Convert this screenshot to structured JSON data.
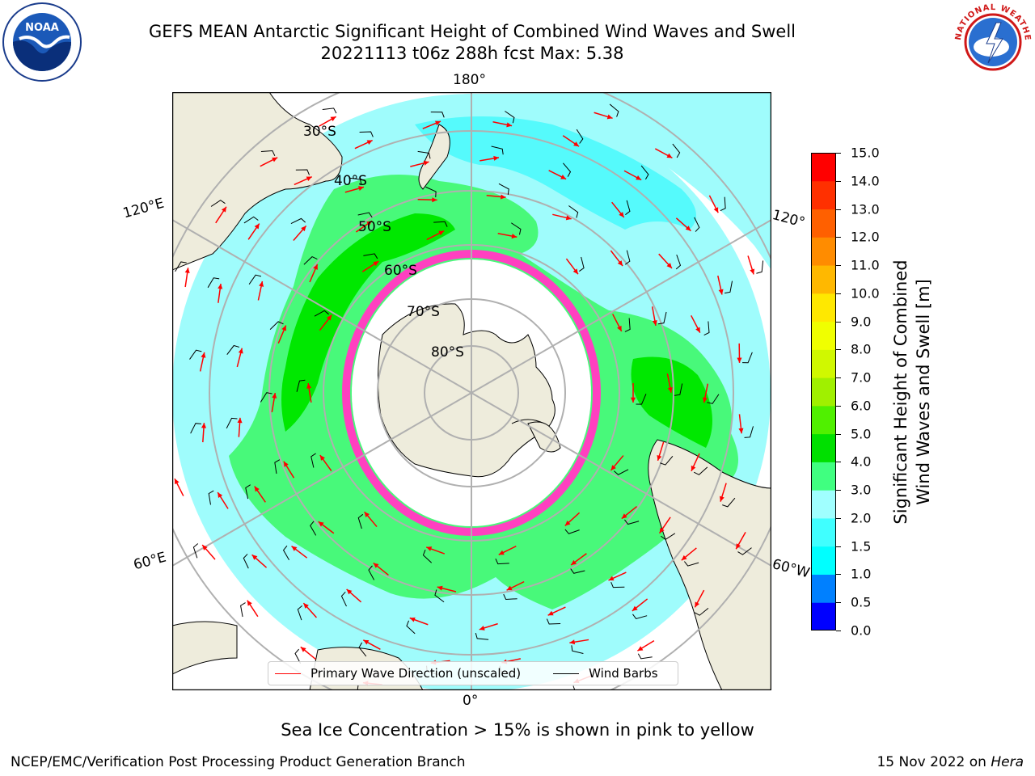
{
  "title_line1": "GEFS MEAN Antarctic Significant Height of Combined Wind Waves and Swell",
  "title_line2": "20221113 t06z 288h fcst   Max: 5.38",
  "longitude_labels": {
    "top": "180°",
    "bottom": "0°",
    "upper_left": "120°E",
    "upper_right": "120°",
    "lower_left": "60°E",
    "lower_right": "60°W"
  },
  "latitude_labels": [
    "30°S",
    "40°S",
    "50°S",
    "60°S",
    "70°S",
    "80°S"
  ],
  "colorbar": {
    "label_line1": "Significant Height of Combined",
    "label_line2": "Wind Waves and Swell [m]",
    "ticks": [
      "15.0",
      "14.0",
      "13.0",
      "12.0",
      "11.0",
      "10.0",
      "9.0",
      "8.0",
      "7.0",
      "6.0",
      "5.0",
      "4.0",
      "3.0",
      "2.0",
      "1.5",
      "1.0",
      "0.5",
      "0.0"
    ],
    "colors_bottom_to_top": [
      "#0000ff",
      "#0080ff",
      "#00ffff",
      "#40ffff",
      "#a0ffff",
      "#40ff80",
      "#00e000",
      "#50f000",
      "#a0f000",
      "#d0f800",
      "#f0ff00",
      "#ffe800",
      "#ffb800",
      "#ff8c00",
      "#ff6000",
      "#ff3000",
      "#ff0000"
    ]
  },
  "legend": {
    "wave_direction": "Primary Wave Direction (unscaled)",
    "wave_color": "#ff0000",
    "wind_barbs": "Wind Barbs",
    "barb_color": "#000000"
  },
  "map_colors": {
    "land": "#eeecdc",
    "ocean_2_3m": "#9ffcfc",
    "ocean_3_4m": "#48f97a",
    "ocean_4_5m": "#00e800",
    "ocean_1_5_2m": "#48f9fc",
    "sea_ice": "#ff40c0",
    "grid": "#b0b0b0"
  },
  "caption": "Sea Ice Concentration > 15% is shown in pink to yellow",
  "footer_left": "NCEP/EMC/Verification Post Processing Product Generation Branch",
  "footer_date": "15 Nov 2022 on",
  "footer_host": "Hera",
  "logos": {
    "left": "noaa-logo",
    "right": "nws-logo"
  },
  "noaa_text": "NOAA",
  "nws_ring_text": "NATIONAL WEATHER SERVICE"
}
